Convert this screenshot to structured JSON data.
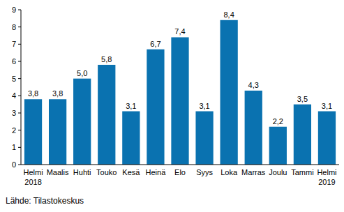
{
  "chart_data": {
    "type": "bar",
    "categories": [
      "Helmi\n2018",
      "Maalis",
      "Huhti",
      "Touko",
      "Kesä",
      "Heinä",
      "Elo",
      "Syys",
      "Loka",
      "Marras",
      "Joulu",
      "Tammi",
      "Helmi\n2019"
    ],
    "values": [
      3.8,
      3.8,
      5.0,
      5.8,
      3.1,
      6.7,
      7.4,
      3.1,
      8.4,
      4.3,
      2.2,
      3.5,
      3.1
    ],
    "value_labels": [
      "3,8",
      "3,8",
      "5,0",
      "5,8",
      "3,1",
      "6,7",
      "7,4",
      "3,1",
      "8,4",
      "4,3",
      "2,2",
      "3,5",
      "3,1"
    ],
    "data_labels": true,
    "color": "#0a72b0",
    "ylim": [
      0,
      9
    ],
    "yticks": [
      0,
      1,
      2,
      3,
      4,
      5,
      6,
      7,
      8,
      9
    ],
    "grid": false,
    "source": "Lähde: Tilastokeskus"
  }
}
